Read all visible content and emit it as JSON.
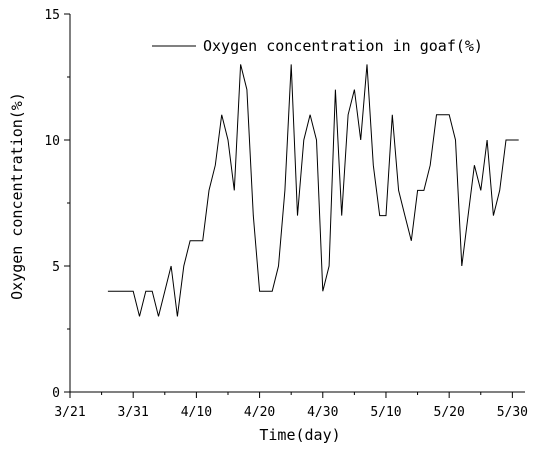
{
  "chart_data": {
    "type": "line",
    "xlabel": "Time(day)",
    "ylabel": "Oxygen concentration(%)",
    "xlim": [
      0,
      72
    ],
    "ylim": [
      0,
      15
    ],
    "x_ticks": [
      {
        "value": 0,
        "label": "3/21"
      },
      {
        "value": 10,
        "label": "3/31"
      },
      {
        "value": 20,
        "label": "4/10"
      },
      {
        "value": 30,
        "label": "4/20"
      },
      {
        "value": 40,
        "label": "4/30"
      },
      {
        "value": 50,
        "label": "5/10"
      },
      {
        "value": 60,
        "label": "5/20"
      },
      {
        "value": 70,
        "label": "5/30"
      }
    ],
    "y_ticks": [
      0,
      5,
      10,
      15
    ],
    "grid": false,
    "legend_position": "top-right",
    "series": [
      {
        "name": "Oxygen concentration in goaf(%)",
        "color": "#000000",
        "x": [
          6,
          10,
          11,
          12,
          13,
          14,
          15,
          16,
          17,
          18,
          19,
          20,
          21,
          22,
          23,
          24,
          25,
          26,
          27,
          28,
          29,
          30,
          31,
          32,
          33,
          34,
          35,
          36,
          37,
          38,
          39,
          40,
          41,
          42,
          43,
          44,
          45,
          46,
          47,
          48,
          49,
          50,
          51,
          52,
          53,
          54,
          55,
          56,
          57,
          58,
          59,
          60,
          61,
          62,
          63,
          64,
          65,
          66,
          67,
          68,
          69,
          70,
          71
        ],
        "y": [
          4,
          4,
          3,
          4,
          4,
          3,
          4,
          5,
          3,
          5,
          6,
          6,
          6,
          8,
          9,
          11,
          10,
          8,
          13,
          12,
          7,
          4,
          4,
          4,
          5,
          8,
          13,
          7,
          10,
          11,
          10,
          4,
          5,
          12,
          7,
          11,
          12,
          10,
          13,
          9,
          7,
          7,
          11,
          8,
          7,
          6,
          8,
          8,
          9,
          11,
          11,
          11,
          10,
          5,
          7,
          9,
          8,
          10,
          7,
          8,
          10,
          10,
          10
        ]
      }
    ]
  }
}
